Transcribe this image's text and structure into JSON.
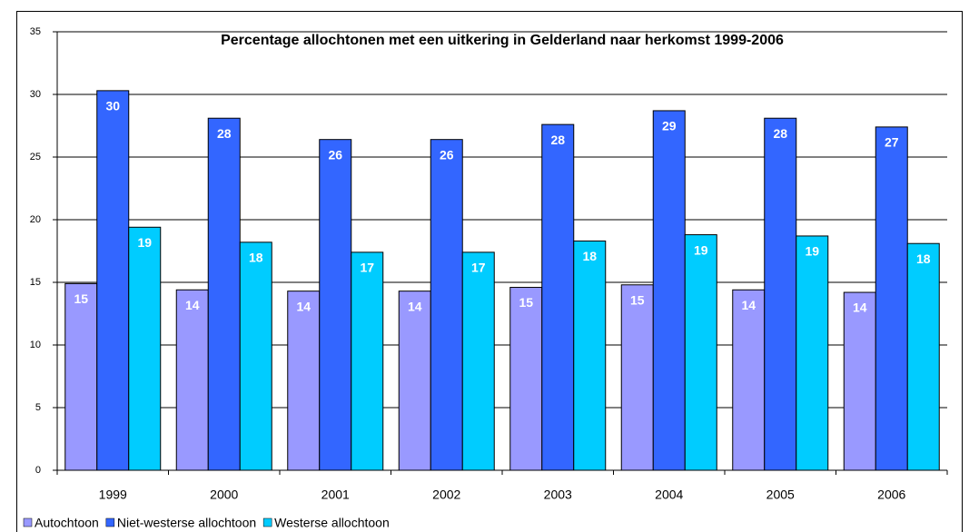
{
  "chart_data": {
    "type": "bar",
    "title": "Percentage allochtonen met een uitkering in Gelderland naar herkomst 1999-2006",
    "categories": [
      "1999",
      "2000",
      "2001",
      "2002",
      "2003",
      "2004",
      "2005",
      "2006"
    ],
    "series": [
      {
        "name": "Autochtoon",
        "color": "#9999ff",
        "values": [
          14.9,
          14.4,
          14.3,
          14.3,
          14.6,
          14.8,
          14.4,
          14.2
        ],
        "value_labels": [
          "15",
          "14",
          "14",
          "14",
          "15",
          "15",
          "14",
          "14"
        ]
      },
      {
        "name": "Niet-westerse allochtoon",
        "color": "#3366ff",
        "values": [
          30.3,
          28.1,
          26.4,
          26.4,
          27.6,
          28.7,
          28.1,
          27.4
        ],
        "value_labels": [
          "30",
          "28",
          "26",
          "26",
          "28",
          "29",
          "28",
          "27"
        ]
      },
      {
        "name": "Westerse allochtoon",
        "color": "#00ccff",
        "values": [
          19.4,
          18.2,
          17.4,
          17.4,
          18.3,
          18.8,
          18.7,
          18.1
        ],
        "value_labels": [
          "19",
          "18",
          "17",
          "17",
          "18",
          "19",
          "19",
          "18"
        ]
      }
    ],
    "ylim": [
      0,
      35
    ],
    "yticks": [
      0,
      5,
      10,
      15,
      20,
      25,
      30,
      35
    ],
    "grid": true,
    "legend": "bottom"
  }
}
